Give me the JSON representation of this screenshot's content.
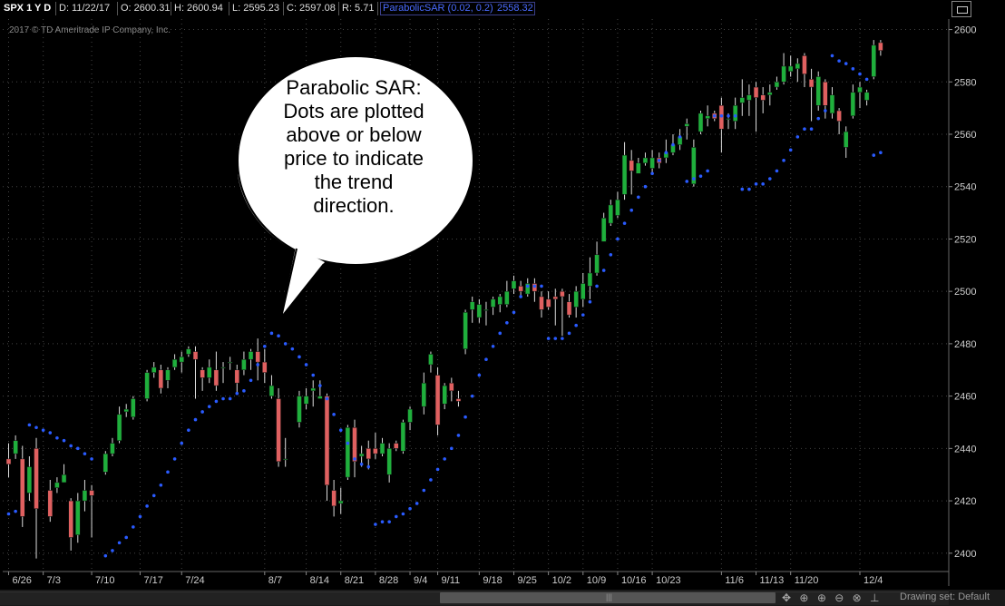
{
  "header": {
    "symbol": "SPX 1 Y D",
    "date": "D: 11/22/17",
    "open": "O: 2600.31",
    "high": "H: 2600.94",
    "low": "L: 2595.23",
    "close": "C: 2597.08",
    "range": "R: 5.71",
    "study": "ParabolicSAR (0.02, 0.2)",
    "study_value": "2558.32"
  },
  "copyright": "2017 © TD Ameritrade IP Company, Inc.",
  "annotation": {
    "lines": [
      "Parabolic SAR:",
      "Dots are plotted",
      "above or below",
      "price to indicate",
      "the trend",
      "direction."
    ]
  },
  "footer": {
    "drawing_set": "Drawing set: Default"
  },
  "colors": {
    "up": "#1faf3c",
    "down": "#e06060",
    "sar": "#2a5bff",
    "grid": "#444444",
    "axis_text": "#cccccc"
  },
  "chart_data": {
    "type": "candlestick",
    "y_ticks": [
      2400,
      2420,
      2440,
      2460,
      2480,
      2500,
      2520,
      2540,
      2560,
      2580,
      2600
    ],
    "ylim": [
      2393,
      2604
    ],
    "x_ticks": [
      "6/26",
      "7/3",
      "7/10",
      "7/17",
      "7/24",
      "8/7",
      "8/14",
      "8/21",
      "8/28",
      "9/4",
      "9/11",
      "9/18",
      "9/25",
      "10/2",
      "10/9",
      "10/16",
      "10/23",
      "11/6",
      "11/13",
      "11/20",
      "12/4"
    ],
    "x_tick_index": [
      0,
      5,
      12,
      19,
      25,
      37,
      43,
      48,
      53,
      58,
      62,
      68,
      73,
      78,
      83,
      88,
      93,
      103,
      108,
      113,
      123
    ],
    "candles": [
      [
        0,
        2436,
        2434,
        2429,
        2442
      ],
      [
        1,
        2438,
        2443,
        2436,
        2445
      ],
      [
        2,
        2436,
        2414,
        2410,
        2441
      ],
      [
        3,
        2423,
        2433,
        2420,
        2437
      ],
      [
        4,
        2440,
        2417,
        2398,
        2444
      ],
      [
        6,
        2424,
        2414,
        2412,
        2428
      ],
      [
        7,
        2425,
        2427,
        2423,
        2429
      ],
      [
        8,
        2427,
        2430,
        2427,
        2434
      ],
      [
        9,
        2420,
        2406,
        2401,
        2421
      ],
      [
        10,
        2407,
        2420,
        2404,
        2423
      ],
      [
        11,
        2420,
        2424,
        2416,
        2428
      ],
      [
        12,
        2424,
        2422,
        2406,
        2426
      ],
      [
        14,
        2431,
        2438,
        2430,
        2439
      ],
      [
        15,
        2438,
        2442,
        2437,
        2444
      ],
      [
        16,
        2443,
        2453,
        2442,
        2456
      ],
      [
        17,
        2454,
        2455,
        2452,
        2457
      ],
      [
        18,
        2452,
        2459,
        2451,
        2460
      ],
      [
        20,
        2459,
        2469,
        2458,
        2470
      ],
      [
        21,
        2469,
        2471,
        2467,
        2473
      ],
      [
        22,
        2470,
        2463,
        2461,
        2472
      ],
      [
        23,
        2466,
        2470,
        2463,
        2471
      ],
      [
        24,
        2471,
        2474,
        2470,
        2476
      ],
      [
        25,
        2473,
        2475,
        2469,
        2477
      ],
      [
        26,
        2476,
        2478,
        2475,
        2479
      ],
      [
        27,
        2477,
        2474,
        2459,
        2479
      ],
      [
        28,
        2470,
        2467,
        2462,
        2471
      ],
      [
        29,
        2467,
        2471,
        2465,
        2474
      ],
      [
        30,
        2470,
        2464,
        2462,
        2477
      ],
      [
        31,
        2471,
        2471,
        2465,
        2473
      ],
      [
        32,
        2473,
        2473,
        2470,
        2475
      ],
      [
        33,
        2470,
        2465,
        2461,
        2472
      ],
      [
        34,
        2470,
        2474,
        2468,
        2477
      ],
      [
        35,
        2474,
        2477,
        2470,
        2478
      ],
      [
        36,
        2477,
        2473,
        2466,
        2482
      ],
      [
        37,
        2473,
        2469,
        2465,
        2478
      ],
      [
        38,
        2460,
        2464,
        2459,
        2468
      ],
      [
        39,
        2459,
        2435,
        2433,
        2463
      ],
      [
        40,
        2436,
        2436,
        2433,
        2444
      ],
      [
        42,
        2450,
        2460,
        2448,
        2462
      ],
      [
        43,
        2457,
        2460,
        2455,
        2463
      ],
      [
        44,
        2462,
        2463,
        2456,
        2466
      ],
      [
        45,
        2459,
        2460,
        2459,
        2466
      ],
      [
        46,
        2460,
        2426,
        2420,
        2461
      ],
      [
        47,
        2424,
        2418,
        2414,
        2428
      ],
      [
        48,
        2419,
        2420,
        2415,
        2425
      ],
      [
        49,
        2429,
        2448,
        2428,
        2449
      ],
      [
        50,
        2448,
        2435,
        2429,
        2451
      ],
      [
        51,
        2437,
        2438,
        2433,
        2441
      ],
      [
        52,
        2440,
        2436,
        2432,
        2443
      ],
      [
        53,
        2440,
        2438,
        2436,
        2446
      ],
      [
        54,
        2438,
        2442,
        2437,
        2444
      ],
      [
        55,
        2430,
        2440,
        2427,
        2442
      ],
      [
        56,
        2442,
        2440,
        2439,
        2443
      ],
      [
        57,
        2439,
        2450,
        2438,
        2451
      ],
      [
        58,
        2450,
        2455,
        2447,
        2456
      ],
      [
        60,
        2456,
        2465,
        2453,
        2469
      ],
      [
        61,
        2472,
        2476,
        2469,
        2477
      ],
      [
        62,
        2468,
        2449,
        2445,
        2471
      ],
      [
        63,
        2457,
        2464,
        2455,
        2465
      ],
      [
        64,
        2465,
        2462,
        2458,
        2467
      ],
      [
        65,
        2459,
        2458,
        2456,
        2462
      ],
      [
        66,
        2478,
        2492,
        2476,
        2493
      ],
      [
        67,
        2493,
        2496,
        2488,
        2498
      ],
      [
        68,
        2490,
        2495,
        2488,
        2497
      ],
      [
        69,
        2493,
        2493,
        2487,
        2496
      ],
      [
        70,
        2494,
        2497,
        2491,
        2498
      ],
      [
        71,
        2495,
        2498,
        2492,
        2499
      ],
      [
        72,
        2495,
        2500,
        2494,
        2504
      ],
      [
        73,
        2501,
        2504,
        2499,
        2506
      ],
      [
        74,
        2502,
        2500,
        2498,
        2504
      ],
      [
        75,
        2499,
        2503,
        2498,
        2505
      ],
      [
        76,
        2503,
        2500,
        2496,
        2505
      ],
      [
        77,
        2498,
        2493,
        2490,
        2500
      ],
      [
        78,
        2497,
        2494,
        2493,
        2500
      ],
      [
        79,
        2498,
        2497,
        2487,
        2501
      ],
      [
        80,
        2500,
        2498,
        2483,
        2501
      ],
      [
        81,
        2496,
        2491,
        2490,
        2499
      ],
      [
        82,
        2494,
        2500,
        2490,
        2502
      ],
      [
        83,
        2497,
        2503,
        2494,
        2507
      ],
      [
        84,
        2502,
        2507,
        2497,
        2513
      ],
      [
        85,
        2507,
        2514,
        2506,
        2519
      ],
      [
        86,
        2519,
        2528,
        2519,
        2530
      ],
      [
        87,
        2526,
        2533,
        2525,
        2535
      ],
      [
        88,
        2529,
        2535,
        2528,
        2538
      ],
      [
        89,
        2537,
        2552,
        2535,
        2557
      ],
      [
        90,
        2550,
        2546,
        2537,
        2554
      ],
      [
        91,
        2545,
        2549,
        2546,
        2551
      ],
      [
        92,
        2549,
        2551,
        2548,
        2553
      ],
      [
        93,
        2547,
        2551,
        2545,
        2554
      ],
      [
        94,
        2551,
        2549,
        2547,
        2553
      ],
      [
        95,
        2551,
        2553,
        2549,
        2558
      ],
      [
        96,
        2553,
        2556,
        2552,
        2560
      ],
      [
        97,
        2556,
        2559,
        2554,
        2562
      ],
      [
        98,
        2563,
        2564,
        2558,
        2566
      ],
      [
        99,
        2541,
        2555,
        2540,
        2558
      ],
      [
        100,
        2561,
        2568,
        2560,
        2569
      ],
      [
        101,
        2566,
        2567,
        2563,
        2571
      ],
      [
        102,
        2568,
        2566,
        2565,
        2569
      ],
      [
        103,
        2571,
        2562,
        2553,
        2574
      ],
      [
        104,
        2566,
        2566,
        2562,
        2568
      ],
      [
        105,
        2565,
        2571,
        2562,
        2574
      ],
      [
        106,
        2572,
        2574,
        2567,
        2581
      ],
      [
        107,
        2573,
        2575,
        2567,
        2579
      ],
      [
        108,
        2578,
        2574,
        2561,
        2580
      ],
      [
        109,
        2575,
        2573,
        2568,
        2578
      ],
      [
        110,
        2575,
        2576,
        2571,
        2579
      ],
      [
        111,
        2578,
        2580,
        2577,
        2582
      ],
      [
        112,
        2580,
        2586,
        2579,
        2591
      ],
      [
        113,
        2584,
        2586,
        2582,
        2590
      ],
      [
        114,
        2585,
        2587,
        2580,
        2589
      ],
      [
        115,
        2590,
        2583,
        2578,
        2591
      ],
      [
        116,
        2581,
        2578,
        2565,
        2585
      ],
      [
        117,
        2571,
        2582,
        2569,
        2584
      ],
      [
        118,
        2580,
        2571,
        2566,
        2581
      ],
      [
        119,
        2568,
        2575,
        2566,
        2578
      ],
      [
        120,
        2569,
        2565,
        2560,
        2570
      ],
      [
        121,
        2555,
        2561,
        2551,
        2563
      ],
      [
        122,
        2567,
        2576,
        2566,
        2579
      ],
      [
        123,
        2576,
        2578,
        2570,
        2580
      ],
      [
        124,
        2573,
        2576,
        2571,
        2577
      ],
      [
        125,
        2582,
        2594,
        2581,
        2596
      ],
      [
        126,
        2595,
        2592,
        2590,
        2596
      ]
    ],
    "sar": [
      [
        0,
        2415
      ],
      [
        1,
        2416
      ],
      [
        3,
        2449
      ],
      [
        4,
        2448
      ],
      [
        5,
        2447
      ],
      [
        6,
        2446
      ],
      [
        7,
        2444
      ],
      [
        8,
        2443
      ],
      [
        9,
        2441
      ],
      [
        10,
        2440
      ],
      [
        11,
        2438
      ],
      [
        12,
        2436
      ],
      [
        14,
        2399
      ],
      [
        15,
        2401
      ],
      [
        16,
        2404
      ],
      [
        17,
        2406
      ],
      [
        18,
        2410
      ],
      [
        19,
        2414
      ],
      [
        20,
        2418
      ],
      [
        21,
        2422
      ],
      [
        22,
        2426
      ],
      [
        23,
        2431
      ],
      [
        24,
        2436
      ],
      [
        25,
        2442
      ],
      [
        26,
        2447
      ],
      [
        27,
        2451
      ],
      [
        28,
        2454
      ],
      [
        29,
        2456
      ],
      [
        30,
        2458
      ],
      [
        31,
        2459
      ],
      [
        32,
        2459
      ],
      [
        33,
        2461
      ],
      [
        34,
        2462
      ],
      [
        35,
        2466
      ],
      [
        36,
        2472
      ],
      [
        37,
        2479
      ],
      [
        38,
        2484
      ],
      [
        39,
        2483
      ],
      [
        40,
        2480
      ],
      [
        41,
        2478
      ],
      [
        42,
        2475
      ],
      [
        43,
        2472
      ],
      [
        44,
        2468
      ],
      [
        45,
        2464
      ],
      [
        46,
        2459
      ],
      [
        47,
        2453
      ],
      [
        48,
        2447
      ],
      [
        49,
        2442
      ],
      [
        50,
        2436
      ],
      [
        51,
        2434
      ],
      [
        52,
        2433
      ],
      [
        53,
        2411
      ],
      [
        54,
        2412
      ],
      [
        55,
        2412
      ],
      [
        56,
        2414
      ],
      [
        57,
        2415
      ],
      [
        58,
        2417
      ],
      [
        59,
        2419
      ],
      [
        60,
        2424
      ],
      [
        61,
        2428
      ],
      [
        62,
        2432
      ],
      [
        63,
        2436
      ],
      [
        64,
        2440
      ],
      [
        65,
        2445
      ],
      [
        66,
        2452
      ],
      [
        67,
        2460
      ],
      [
        68,
        2468
      ],
      [
        69,
        2474
      ],
      [
        70,
        2479
      ],
      [
        71,
        2484
      ],
      [
        72,
        2488
      ],
      [
        73,
        2492
      ],
      [
        74,
        2498
      ],
      [
        75,
        2502
      ],
      [
        76,
        2502
      ],
      [
        77,
        2502
      ],
      [
        78,
        2482
      ],
      [
        79,
        2482
      ],
      [
        80,
        2482
      ],
      [
        81,
        2484
      ],
      [
        82,
        2487
      ],
      [
        83,
        2491
      ],
      [
        84,
        2496
      ],
      [
        85,
        2502
      ],
      [
        86,
        2508
      ],
      [
        87,
        2514
      ],
      [
        88,
        2520
      ],
      [
        89,
        2526
      ],
      [
        90,
        2531
      ],
      [
        91,
        2536
      ],
      [
        92,
        2540
      ],
      [
        93,
        2545
      ],
      [
        94,
        2550
      ],
      [
        95,
        2553
      ],
      [
        96,
        2556
      ],
      [
        97,
        2559
      ],
      [
        98,
        2542
      ],
      [
        99,
        2543
      ],
      [
        100,
        2544
      ],
      [
        101,
        2546
      ],
      [
        102,
        2567
      ],
      [
        103,
        2567
      ],
      [
        104,
        2567
      ],
      [
        105,
        2567
      ],
      [
        106,
        2539
      ],
      [
        107,
        2539
      ],
      [
        108,
        2541
      ],
      [
        109,
        2541
      ],
      [
        110,
        2543
      ],
      [
        111,
        2546
      ],
      [
        112,
        2550
      ],
      [
        113,
        2554
      ],
      [
        114,
        2559
      ],
      [
        115,
        2562
      ],
      [
        116,
        2562
      ],
      [
        117,
        2566
      ],
      [
        118,
        2569
      ],
      [
        119,
        2590
      ],
      [
        120,
        2588
      ],
      [
        121,
        2587
      ],
      [
        122,
        2585
      ],
      [
        123,
        2583
      ],
      [
        124,
        2581
      ],
      [
        125,
        2552
      ],
      [
        126,
        2553
      ]
    ]
  }
}
